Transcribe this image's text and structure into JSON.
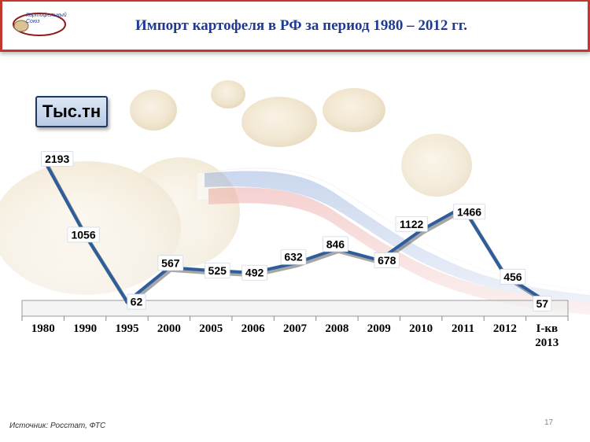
{
  "header": {
    "title": "Импорт картофеля в РФ за период 1980 – 2012 гг.",
    "logo_text": "Картофельный Союз"
  },
  "unit_label": "Тыс.тн",
  "footer": {
    "source": "Источник: Росстат, ФТС",
    "page_number": "17"
  },
  "colors": {
    "line": "#2e5d9c",
    "header_border": "#c0392b",
    "title": "#1f3a93"
  },
  "chart_data": {
    "type": "line",
    "title": "Импорт картофеля в РФ за период 1980 – 2012 гг.",
    "ylabel": "Тыс.тн",
    "xlabel": "",
    "categories": [
      "1980",
      "1990",
      "1995",
      "2000",
      "2005",
      "2006",
      "2007",
      "2008",
      "2009",
      "2010",
      "2011",
      "2012",
      "I-кв 2013"
    ],
    "series": [
      {
        "values": [
          2193,
          1056,
          62,
          567,
          525,
          492,
          632,
          846,
          678,
          1122,
          1466,
          456,
          57
        ]
      }
    ],
    "ylim": [
      0,
      2300
    ],
    "grid": false,
    "legend": "none"
  }
}
